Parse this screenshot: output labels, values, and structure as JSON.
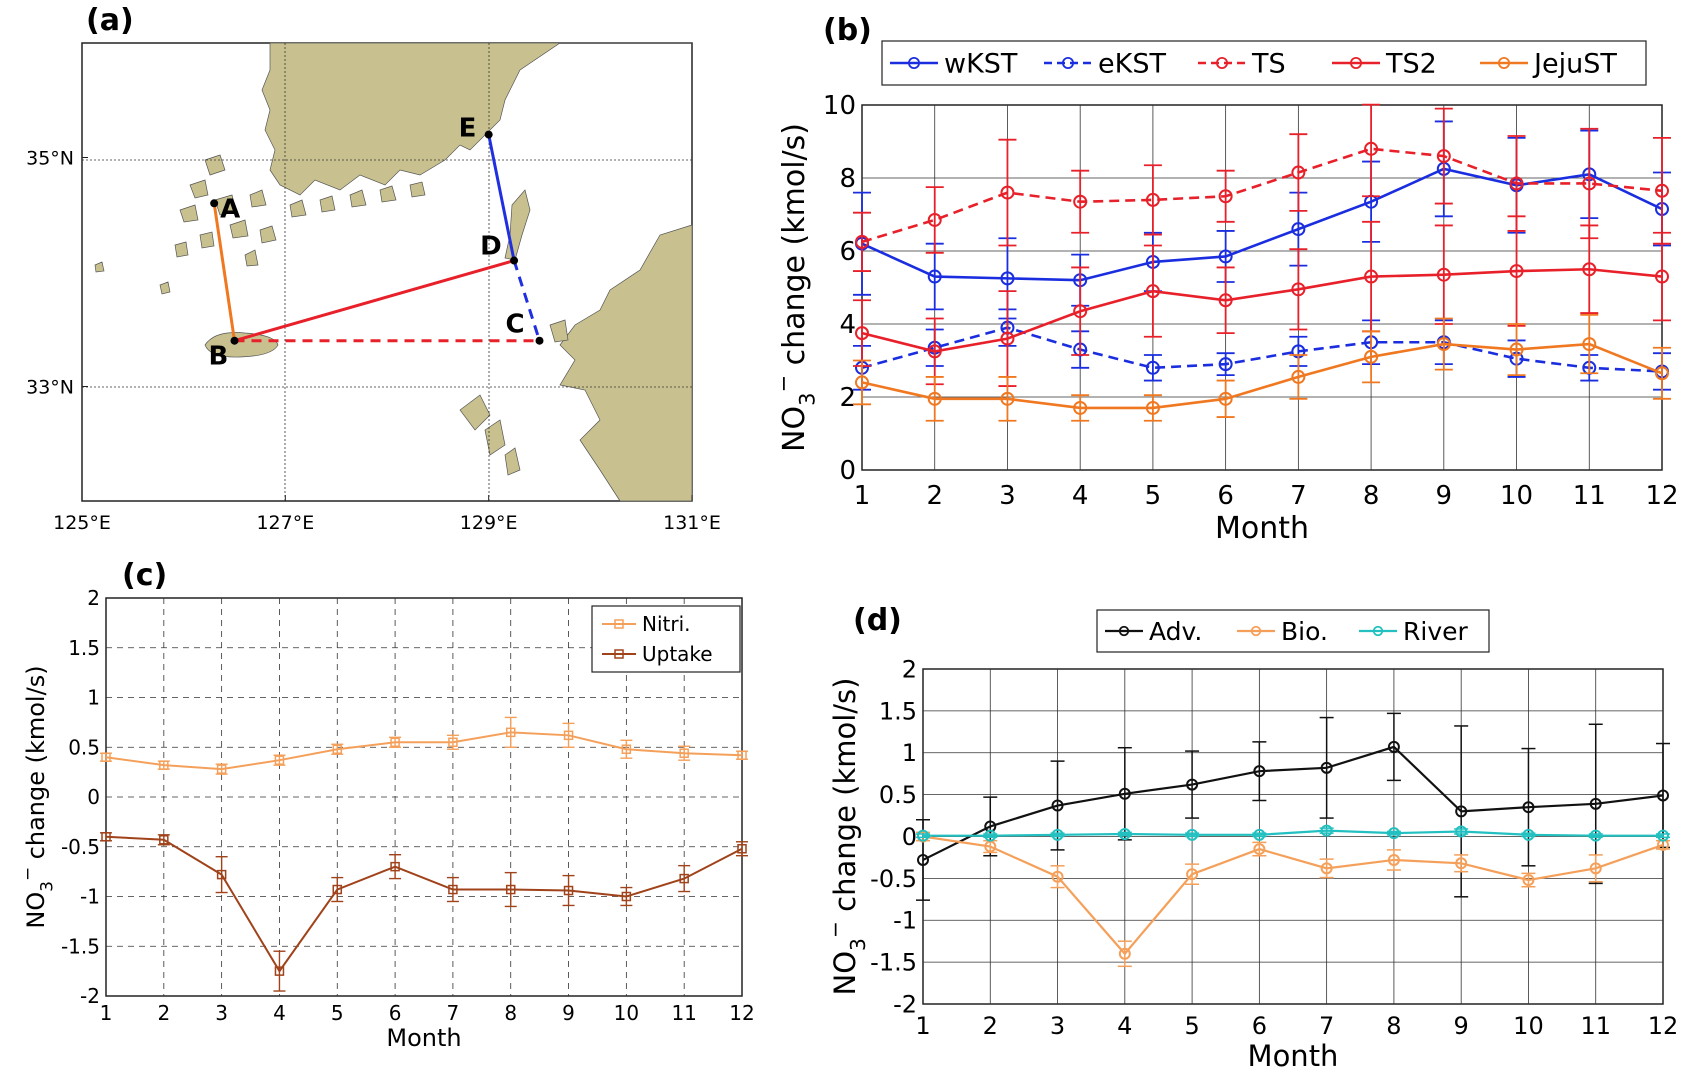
{
  "chart_data": [
    {
      "panel": "(a)",
      "type": "map",
      "xticks": [
        "125°E",
        "127°E",
        "129°E",
        "131°E"
      ],
      "xtick_values": [
        125,
        127,
        129,
        131
      ],
      "yticks": [
        "35°N",
        "33°N"
      ],
      "ytick_values": [
        35,
        33
      ],
      "xlim": [
        125,
        131
      ],
      "ylim": [
        32,
        36
      ],
      "points": [
        {
          "name": "A",
          "lon": 126.3,
          "lat": 34.6
        },
        {
          "name": "B",
          "lon": 126.5,
          "lat": 33.4
        },
        {
          "name": "C",
          "lon": 129.5,
          "lat": 33.4
        },
        {
          "name": "D",
          "lon": 129.25,
          "lat": 34.1
        },
        {
          "name": "E",
          "lon": 129.0,
          "lat": 35.2
        }
      ],
      "sections": [
        {
          "from": "A",
          "to": "B",
          "color": "#f07820",
          "style": "solid"
        },
        {
          "from": "B",
          "to": "D",
          "color": "#e8202a",
          "style": "solid"
        },
        {
          "from": "B",
          "to": "C",
          "color": "#e8202a",
          "style": "dashed"
        },
        {
          "from": "E",
          "to": "D",
          "color": "#2030e0",
          "style": "solid"
        },
        {
          "from": "D",
          "to": "C",
          "color": "#2030e0",
          "style": "dashed"
        }
      ]
    },
    {
      "panel": "(b)",
      "type": "line",
      "xlabel": "Month",
      "ylabel_main": "NO",
      "ylabel_sub": "3",
      "ylabel_sup": "−",
      "ylabel_rest": " change (kmol/s)",
      "x": [
        1,
        2,
        3,
        4,
        5,
        6,
        7,
        8,
        9,
        10,
        11,
        12
      ],
      "xlim": [
        1,
        12
      ],
      "ylim": [
        0,
        10
      ],
      "yticks": [
        0,
        2,
        4,
        6,
        8,
        10
      ],
      "legend_position": "top",
      "series": [
        {
          "name": "wKST",
          "color": "#1a2ee0",
          "dash": "solid",
          "values": [
            6.2,
            5.3,
            5.25,
            5.2,
            5.7,
            5.85,
            6.6,
            7.35,
            8.25,
            7.8,
            8.1,
            7.15
          ],
          "errors": [
            1.4,
            0.9,
            1.1,
            0.7,
            0.8,
            0.7,
            1.0,
            1.1,
            1.3,
            1.3,
            1.2,
            1.0
          ]
        },
        {
          "name": "eKST",
          "color": "#1a2ee0",
          "dash": "dashed",
          "values": [
            2.8,
            3.35,
            3.9,
            3.3,
            2.8,
            2.9,
            3.25,
            3.5,
            3.5,
            3.05,
            2.8,
            2.7
          ],
          "errors": [
            0.6,
            0.5,
            0.5,
            0.5,
            0.35,
            0.3,
            0.4,
            0.6,
            0.6,
            0.5,
            0.35,
            0.5
          ]
        },
        {
          "name": "TS",
          "color": "#e8202a",
          "dash": "dashed",
          "values": [
            6.25,
            6.85,
            7.6,
            7.35,
            7.4,
            7.5,
            8.15,
            8.8,
            8.6,
            7.85,
            7.85,
            7.65
          ],
          "errors": [
            0.8,
            0.9,
            1.45,
            0.85,
            0.95,
            0.7,
            1.05,
            1.3,
            1.3,
            1.3,
            1.5,
            1.45
          ]
        },
        {
          "name": "TS2",
          "color": "#e8202a",
          "dash": "solid",
          "values": [
            3.75,
            3.25,
            3.6,
            4.35,
            4.9,
            4.65,
            4.95,
            5.3,
            5.35,
            5.45,
            5.5,
            5.3
          ],
          "errors": [
            0.9,
            0.9,
            1.3,
            1.2,
            1.25,
            0.9,
            1.1,
            1.5,
            1.35,
            1.5,
            1.2,
            1.2
          ]
        },
        {
          "name": "JejuST",
          "color": "#f07820",
          "dash": "solid",
          "values": [
            2.4,
            1.95,
            1.95,
            1.7,
            1.7,
            1.95,
            2.55,
            3.1,
            3.45,
            3.3,
            3.45,
            2.65
          ],
          "errors": [
            0.6,
            0.6,
            0.6,
            0.35,
            0.35,
            0.5,
            0.6,
            0.7,
            0.7,
            0.7,
            0.8,
            0.7
          ]
        }
      ]
    },
    {
      "panel": "(c)",
      "type": "line",
      "xlabel": "Month",
      "ylabel_main": "NO",
      "ylabel_sub": "3",
      "ylabel_sup": "−",
      "ylabel_rest": " change (kmol/s)",
      "x": [
        1,
        2,
        3,
        4,
        5,
        6,
        7,
        8,
        9,
        10,
        11,
        12
      ],
      "xlim": [
        1,
        12
      ],
      "ylim": [
        -2,
        2
      ],
      "yticks": [
        -2,
        -1.5,
        -1,
        -0.5,
        0,
        0.5,
        1,
        1.5,
        2
      ],
      "ytick_labels": [
        "-2",
        "-1.5",
        "-1",
        "-0.5",
        "0",
        "0.5",
        "1",
        "1.5",
        "2"
      ],
      "grid": "dashed",
      "legend_position": "top-right",
      "series": [
        {
          "name": "Nitri.",
          "color": "#f5a05a",
          "marker": "square",
          "values": [
            0.4,
            0.32,
            0.28,
            0.37,
            0.48,
            0.55,
            0.55,
            0.65,
            0.62,
            0.48,
            0.44,
            0.42
          ],
          "errors": [
            0.04,
            0.04,
            0.05,
            0.05,
            0.05,
            0.05,
            0.07,
            0.15,
            0.12,
            0.09,
            0.07,
            0.04
          ]
        },
        {
          "name": "Uptake",
          "color": "#a0421a",
          "marker": "square",
          "values": [
            -0.4,
            -0.43,
            -0.78,
            -1.75,
            -0.93,
            -0.7,
            -0.93,
            -0.93,
            -0.94,
            -1.0,
            -0.82,
            -0.52
          ],
          "errors": [
            0.04,
            0.05,
            0.18,
            0.2,
            0.12,
            0.12,
            0.12,
            0.17,
            0.15,
            0.09,
            0.13,
            0.07
          ]
        }
      ]
    },
    {
      "panel": "(d)",
      "type": "line",
      "xlabel": "Month",
      "ylabel_main": "NO",
      "ylabel_sub": "3",
      "ylabel_sup": "−",
      "ylabel_rest": " change (kmol/s)",
      "x": [
        1,
        2,
        3,
        4,
        5,
        6,
        7,
        8,
        9,
        10,
        11,
        12
      ],
      "xlim": [
        1,
        12
      ],
      "ylim": [
        -2,
        2
      ],
      "yticks": [
        -2,
        -1.5,
        -1,
        -0.5,
        0,
        0.5,
        1,
        1.5,
        2
      ],
      "ytick_labels": [
        "-2",
        "-1.5",
        "-1",
        "-0.5",
        "0",
        "0.5",
        "1",
        "1.5",
        "2"
      ],
      "legend_position": "top",
      "series": [
        {
          "name": "Adv.",
          "color": "#111111",
          "marker": "circle",
          "values": [
            -0.28,
            0.12,
            0.37,
            0.51,
            0.62,
            0.78,
            0.82,
            1.07,
            0.3,
            0.35,
            0.39,
            0.49
          ],
          "errors": [
            0.48,
            0.35,
            0.53,
            0.55,
            0.4,
            0.35,
            0.6,
            0.4,
            1.02,
            0.7,
            0.95,
            0.62
          ]
        },
        {
          "name": "Bio.",
          "color": "#f5a05a",
          "marker": "circle",
          "values": [
            0.0,
            -0.12,
            -0.48,
            -1.4,
            -0.45,
            -0.15,
            -0.38,
            -0.28,
            -0.32,
            -0.52,
            -0.38,
            -0.1
          ],
          "errors": [
            0.05,
            0.07,
            0.13,
            0.15,
            0.12,
            0.08,
            0.11,
            0.12,
            0.1,
            0.08,
            0.16,
            0.05
          ]
        },
        {
          "name": "River",
          "color": "#22c0c0",
          "marker": "circle",
          "values": [
            0.01,
            0.01,
            0.02,
            0.03,
            0.02,
            0.02,
            0.07,
            0.04,
            0.06,
            0.02,
            0.01,
            0.01
          ],
          "errors": [
            0.02,
            0.02,
            0.02,
            0.02,
            0.02,
            0.02,
            0.03,
            0.02,
            0.03,
            0.02,
            0.02,
            0.02
          ]
        }
      ]
    }
  ]
}
